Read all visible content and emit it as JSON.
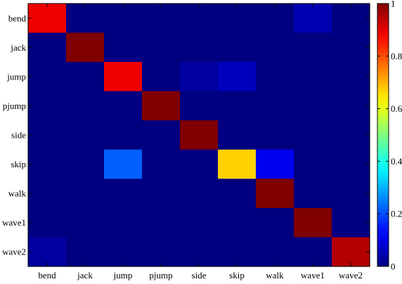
{
  "chart_data": {
    "type": "heatmap",
    "x_categories": [
      "bend",
      "jack",
      "jump",
      "pjump",
      "side",
      "skip",
      "walk",
      "wave1",
      "wave2"
    ],
    "y_categories": [
      "bend",
      "jack",
      "jump",
      "pjump",
      "side",
      "skip",
      "walk",
      "wave1",
      "wave2"
    ],
    "values": [
      [
        0.89,
        0,
        0,
        0,
        0,
        0,
        0,
        0.05,
        0
      ],
      [
        0,
        1.0,
        0,
        0,
        0,
        0,
        0,
        0,
        0
      ],
      [
        0,
        0,
        0.89,
        0,
        0.03,
        0.06,
        0,
        0,
        0
      ],
      [
        0,
        0,
        0,
        1.0,
        0,
        0,
        0,
        0,
        0
      ],
      [
        0,
        0,
        0,
        0,
        1.0,
        0,
        0,
        0,
        0
      ],
      [
        0,
        0,
        0.22,
        0,
        0,
        0.67,
        0.11,
        0,
        0
      ],
      [
        0,
        0,
        0,
        0,
        0,
        0,
        1.0,
        0,
        0
      ],
      [
        0,
        0,
        0,
        0,
        0,
        0,
        0,
        1.0,
        0
      ],
      [
        0.03,
        0,
        0,
        0,
        0,
        0,
        0,
        0,
        0.95
      ]
    ],
    "colorbar": {
      "colormap": "jet",
      "range": [
        0,
        1
      ],
      "ticks": [
        0,
        0.2,
        0.4,
        0.6,
        0.8,
        1
      ],
      "tick_labels": [
        "0",
        "0.2",
        "0.4",
        "0.6",
        "0.8",
        "1"
      ]
    },
    "title": "",
    "xlabel": "",
    "ylabel": ""
  }
}
